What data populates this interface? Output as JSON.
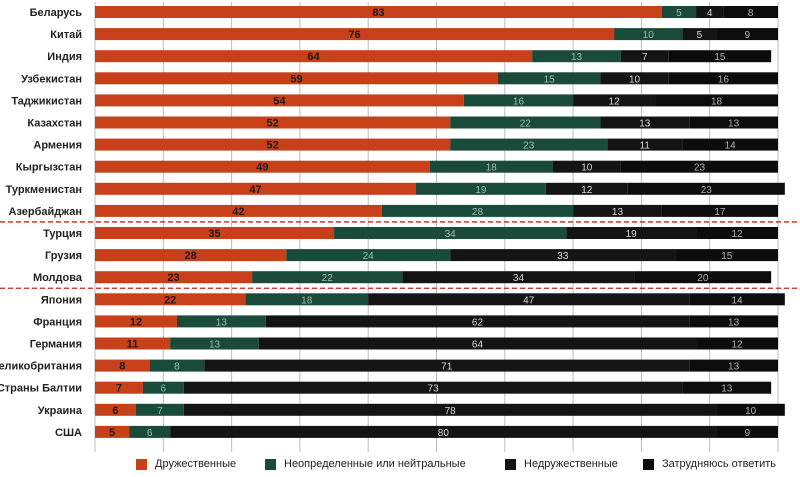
{
  "chart_data": {
    "type": "bar",
    "orientation": "horizontal",
    "stacked": true,
    "title": "",
    "xlim": [
      0,
      100
    ],
    "x_ticks": [
      "0%",
      "10%",
      "20%",
      "30%",
      "40%",
      "50%",
      "60%",
      "70%",
      "80%",
      "90%",
      "100%"
    ],
    "grid": true,
    "legend_position": "bottom",
    "group_separators_after": [
      "Азербайджан",
      "Молдова"
    ],
    "categories": [
      "Беларусь",
      "Китай",
      "Индия",
      "Узбекистан",
      "Таджикистан",
      "Казахстан",
      "Армения",
      "Кыргызстан",
      "Туркменистан",
      "Азербайджан",
      "Турция",
      "Грузия",
      "Молдова",
      "Япония",
      "Франция",
      "Германия",
      "Великобритания",
      "Страны Балтии",
      "Украина",
      "США"
    ],
    "series": [
      {
        "name": "Дружественные",
        "color": "#C8401A",
        "values": [
          83,
          76,
          64,
          59,
          54,
          52,
          52,
          49,
          47,
          42,
          35,
          28,
          23,
          22,
          12,
          11,
          8,
          7,
          6,
          5
        ]
      },
      {
        "name": "Неопределенные или нейтральные",
        "color": "#1A4A3A",
        "values": [
          5,
          10,
          13,
          15,
          16,
          22,
          23,
          18,
          19,
          28,
          34,
          24,
          22,
          18,
          13,
          13,
          8,
          6,
          7,
          6
        ]
      },
      {
        "name": "Недружественные",
        "color": "#141414",
        "values": [
          4,
          5,
          7,
          10,
          12,
          13,
          11,
          10,
          12,
          13,
          19,
          33,
          34,
          47,
          62,
          64,
          71,
          73,
          78,
          80
        ]
      },
      {
        "name": "Затрудняюсь ответить",
        "color": "#0C0C0C",
        "values": [
          8,
          9,
          15,
          16,
          18,
          13,
          14,
          23,
          23,
          17,
          12,
          15,
          20,
          14,
          13,
          12,
          13,
          13,
          10,
          9
        ]
      }
    ]
  }
}
